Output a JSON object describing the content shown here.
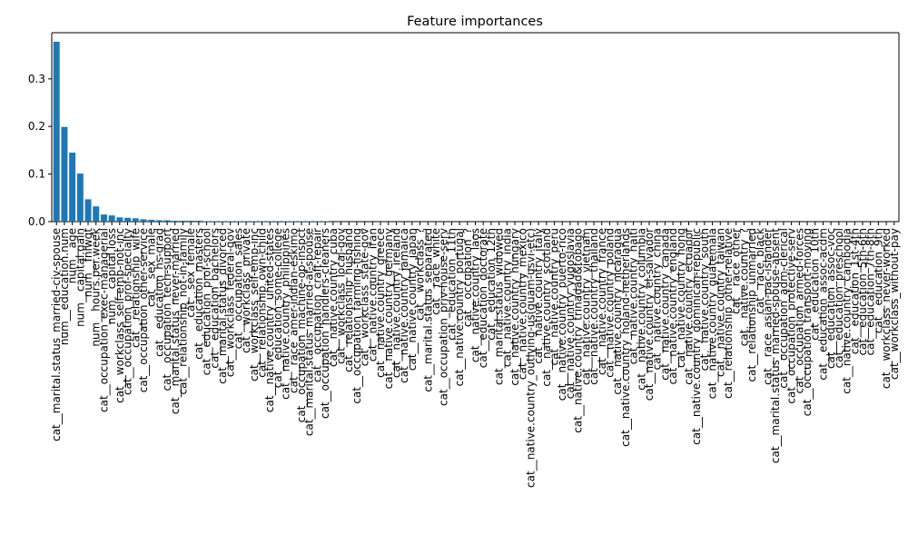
{
  "chart_data": {
    "type": "bar",
    "title": "Feature importances",
    "categories": [
      "cat__marital.status_married-civ-spouse",
      "num__education.num",
      "num__age",
      "num__capital.gain",
      "num__fnlwgt",
      "num__hours.per.week",
      "cat__occupation_exec-managerial",
      "num__capital.loss",
      "cat__workclass_self-emp-not-inc",
      "cat__occupation_prof-specialty",
      "cat__relationship_wife",
      "cat__occupation_other-service",
      "cat__sex_male",
      "cat__education_hs-grad",
      "cat__occupation_tech-support",
      "cat__marital.status_never-married",
      "cat__relationship_not-in-family",
      "cat__sex_female",
      "cat__education_masters",
      "cat__education_prof-school",
      "cat__education_bachelors",
      "cat__marital.status_divorced",
      "cat__workclass_federal-gov",
      "cat__occupation_sales",
      "cat__workclass_private",
      "cat__workclass_self-emp-inc",
      "cat__relationship_own-child",
      "cat__native.country_united-states",
      "cat__education_some-college",
      "cat__native.country_philippines",
      "cat__race_amer-indian-eskimo",
      "cat__occupation_machine-op-inspct",
      "cat__marital.status_married-af-spouse",
      "cat__occupation_craft-repair",
      "cat__occupation_handlers-cleaners",
      "cat__native.country_cuba",
      "cat__workclass_local-gov",
      "cat__relationship_husband",
      "cat__occupation_farming-fishing",
      "cat__workclass_state-gov",
      "cat__native.country_iran",
      "cat__native.country_greece",
      "cat__native.country_germany",
      "cat__native.country_ireland",
      "cat__native.country_jamaica",
      "cat__native.country_japan",
      "cat__workclass_?",
      "cat__marital.status_separated",
      "cat__race_white",
      "cat__occupation_priv-house-serv",
      "cat__education_11th",
      "cat__native.country_portugal",
      "cat__occupation_?",
      "cat__native.country_laos",
      "cat__education_doctorate",
      "cat__education_12th",
      "cat__marital.status_widowed",
      "cat__native.country_india",
      "cat__native.country_hungary",
      "cat__native.country_mexico",
      "cat__native.country_outlying-us(guam-usvi-etc)",
      "cat__native.country_italy",
      "cat__native.country_scotland",
      "cat__native.country_peru",
      "cat__native.country_puerto-rico",
      "cat__native.country_yugoslavia",
      "cat__native.country_trinadad&tobago",
      "cat__native.country_vietnam",
      "cat__native.country_thailand",
      "cat__native.country_france",
      "cat__native.country_poland",
      "cat__native.country_nicaragua",
      "cat__native.country_holand-netherlands",
      "cat__native.country_haiti",
      "cat__native.country_columbia",
      "cat__native.country_el-salvador",
      "cat__native.country_china",
      "cat__native.country_canada",
      "cat__native.country_england",
      "cat__native.country_hong",
      "cat__native.country_ecuador",
      "cat__native.country_dominican-republic",
      "cat__native.country_south",
      "cat__native.country_guatemala",
      "cat__native.country_taiwan",
      "cat__relationship_other-relative",
      "cat__race_other",
      "cat__native.country_?",
      "cat__relationship_unmarried",
      "cat__race_black",
      "cat__race_asian-pac-islander",
      "cat__marital.status_married-spouse-absent",
      "cat__occupation_adm-clerical",
      "cat__occupation_protective-serv",
      "cat__occupation_armed-forces",
      "cat__occupation_transport-moving",
      "cat__education_10th",
      "cat__education_assoc-acdm",
      "cat__education_assoc-voc",
      "cat__education_preschool",
      "cat__native.country_cambodia",
      "cat__education_1st-4th",
      "cat__education_5th-6th",
      "cat__education_7th-8th",
      "cat__education_9th",
      "cat__workclass_never-worked",
      "cat__workclass_without-pay"
    ],
    "values": [
      0.378,
      0.199,
      0.145,
      0.101,
      0.047,
      0.032,
      0.015,
      0.013,
      0.009,
      0.008,
      0.007,
      0.005,
      0.004,
      0.003,
      0.003,
      0.002,
      0.002,
      0.002,
      0.002,
      0.001,
      0.001,
      0.001,
      0.001,
      0.001,
      0.001,
      0.001,
      0.001,
      0.001,
      0.001,
      0.001,
      0.001,
      0.001,
      0.001,
      0.001,
      0.001,
      0,
      0,
      0,
      0,
      0,
      0,
      0,
      0,
      0,
      0,
      0,
      0,
      0,
      0,
      0,
      0,
      0,
      0,
      0,
      0,
      0,
      0,
      0,
      0,
      0,
      0,
      0,
      0,
      0,
      0,
      0,
      0,
      0,
      0,
      0,
      0,
      0,
      0,
      0,
      0,
      0,
      0,
      0,
      0,
      0,
      0,
      0,
      0,
      0,
      0,
      0,
      0,
      0,
      0,
      0,
      0,
      0,
      0,
      0,
      0,
      0,
      0,
      0,
      0,
      0,
      0,
      0,
      0,
      0,
      0,
      0,
      0
    ],
    "color": "#1f77b4",
    "ylim": [
      0,
      0.397
    ],
    "yticks": [
      {
        "value": 0,
        "label": "0.0"
      },
      0.1,
      0.2,
      0.3
    ],
    "grid": false
  }
}
